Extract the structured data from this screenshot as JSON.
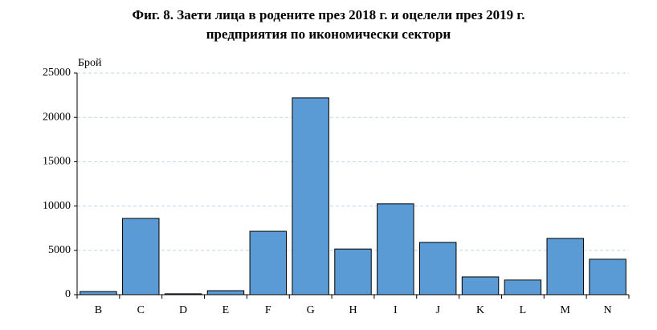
{
  "chart_data": {
    "type": "bar",
    "title": [
      "Фиг. 8. Заети лица в родените през 2018 г. и оцелели през 2019 г.",
      "предприятия по икономически сектори"
    ],
    "y_label": "Брой",
    "categories": [
      "B",
      "C",
      "D",
      "E",
      "F",
      "G",
      "H",
      "I",
      "J",
      "K",
      "L",
      "M",
      "N"
    ],
    "values": [
      350,
      8600,
      100,
      450,
      7150,
      22200,
      5150,
      10250,
      5900,
      2000,
      1650,
      6350,
      4000
    ],
    "color": "#5b9bd5",
    "ylim": [
      0,
      25000
    ],
    "yticks": [
      0,
      5000,
      10000,
      15000,
      20000,
      25000
    ],
    "grid": true
  }
}
